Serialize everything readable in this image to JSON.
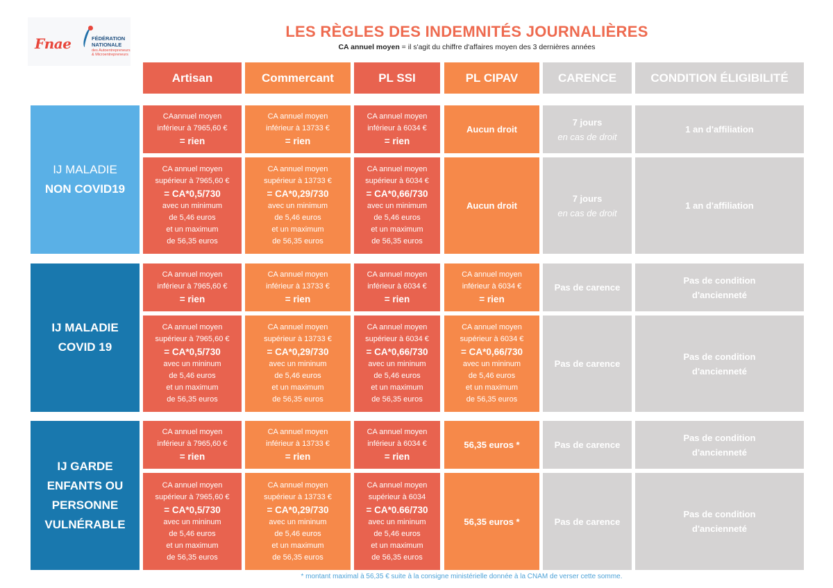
{
  "logo": {
    "mark": "Fnae",
    "line1": "FÉDÉRATION",
    "line2": "NATIONALE",
    "small1": "des Autoentrepreneurs",
    "small2": "& Microentrepreneurs"
  },
  "title": "LES RÈGLES DES INDEMNITÉS JOURNALIÈRES",
  "subtitle_bold": "CA annuel moyen",
  "subtitle_rest": " = il s'agit du chiffre d'affaires moyen des 3 dernières années",
  "headers": {
    "artisan": "Artisan",
    "commercant": "Commercant",
    "plssi": "PL SSI",
    "plcipav": "PL CIPAV",
    "carence": "CARENCE",
    "condition": "CONDITION ÉLIGIBILITÉ"
  },
  "groups": [
    {
      "label": [
        "IJ MALADIE",
        "NON COVID19"
      ],
      "rows": [
        {
          "artisan": [
            "CAannuel moyen",
            "inférieur à 7965,60 €",
            "= rien"
          ],
          "commercant": [
            "CA annuel moyen",
            "inférieur à 13733 €",
            "= rien"
          ],
          "plssi": [
            "CA annuel moyen",
            "inférieur à 6034 €",
            "= rien"
          ],
          "plcipav": "Aucun droit",
          "carence": [
            "7 jours",
            "en cas de droit"
          ],
          "condition": "1 an d'affiliation"
        },
        {
          "artisan": [
            "CA annuel moyen",
            "supérieur à 7965,60 €",
            "= CA*0,5/730",
            "avec un minimum",
            "de 5,46 euros",
            "et un maximum",
            "de 56,35 euros"
          ],
          "commercant": [
            "CA annuel moyen",
            "supérieur à 13733 €",
            "= CA*0,29/730",
            "avec un minimum",
            "de 5,46 euros",
            "et un maximum",
            "de 56,35 euros"
          ],
          "plssi": [
            "CA annuel moyen",
            "supérieur à 6034 €",
            "= CA*0,66/730",
            "avec un minimum",
            "de 5,46 euros",
            "et un maximum",
            "de 56,35 euros"
          ],
          "plcipav": "Aucun droit",
          "carence": [
            "7 jours",
            "en cas de droit"
          ],
          "condition": "1 an d'affiliation"
        }
      ]
    },
    {
      "label": [
        "IJ MALADIE",
        "COVID 19"
      ],
      "rows": [
        {
          "artisan": [
            "CA annuel moyen",
            "inférieur à 7965,60 €",
            "= rien"
          ],
          "commercant": [
            "CA annuel moyen",
            "inférieur à 13733 €",
            "= rien"
          ],
          "plssi": [
            "CA annuel moyen",
            "inférieur à 6034 €",
            "= rien"
          ],
          "plcipav": [
            "CA annuel moyen",
            "inférieur à 6034 €",
            "= rien"
          ],
          "carence": "Pas de carence",
          "condition": [
            "Pas de condition",
            "d'ancienneté"
          ]
        },
        {
          "artisan": [
            "CA annuel moyen",
            "supérieur à 7965,60 €",
            "= CA*0,5/730",
            "avec un mininum",
            "de 5,46 euros",
            "et un maximum",
            "de 56,35 euros"
          ],
          "commercant": [
            "CA annuel moyen",
            "supérieur à 13733 €",
            "= CA*0,29/730",
            "avec un mininum",
            "de 5,46 euros",
            "et un maximum",
            "de 56,35 euros"
          ],
          "plssi": [
            "CA annuel moyen",
            "supérieur à 6034 €",
            "= CA*0,66/730",
            "avec un mininum",
            "de 5,46 euros",
            "et un maximum",
            "de 56,35 euros"
          ],
          "plcipav": [
            "CA annuel moyen",
            "supérieur à 6034 €",
            "= CA*0,66/730",
            "avec un mininum",
            "de 5,46 euros",
            "et un maximum",
            "de 56,35 euros"
          ],
          "carence": "Pas de carence",
          "condition": [
            "Pas de condition",
            "d'ancienneté"
          ]
        }
      ]
    },
    {
      "label": [
        "IJ GARDE",
        "ENFANTS OU",
        "PERSONNE",
        "VULNÉRABLE"
      ],
      "rows": [
        {
          "artisan": [
            "CA annuel moyen",
            "inférieur à 7965,60 €",
            "= rien"
          ],
          "commercant": [
            "CA annuel moyen",
            "inférieur à 13733 €",
            "= rien"
          ],
          "plssi": [
            "CA annuel moyen",
            "inférieur à 6034 €",
            "= rien"
          ],
          "plcipav": "56,35 euros *",
          "carence": "Pas de carence",
          "condition": [
            "Pas de condition",
            "d'ancienneté"
          ]
        },
        {
          "artisan": [
            "CA annuel moyen",
            "supérieur à 7965,60 €",
            "= CA*0,5/730",
            "avec un mininum",
            "de 5,46 euros",
            "et un maximum",
            "de 56,35 euros"
          ],
          "commercant": [
            "CA annuel moyen",
            "supérieur à 13733 €",
            "= CA*0,29/730",
            "avec un mininum",
            "de 5,46 euros",
            "et un maximum",
            "de 56,35 euros"
          ],
          "plssi": [
            "CA annuel moyen",
            "supérieur à 6034",
            "= CA*0.66/730",
            "avec un mininum",
            "de 5,46 euros",
            "et un maximum",
            "de 56,35 euros"
          ],
          "plcipav": "56,35 euros *",
          "carence": "Pas de carence",
          "condition": [
            "Pas de condition",
            "d'ancienneté"
          ]
        }
      ]
    }
  ],
  "footnote": "* montant maximal à 56,35 € suite à la consigne ministérielle donnée à la CNAM de verser cette somme."
}
